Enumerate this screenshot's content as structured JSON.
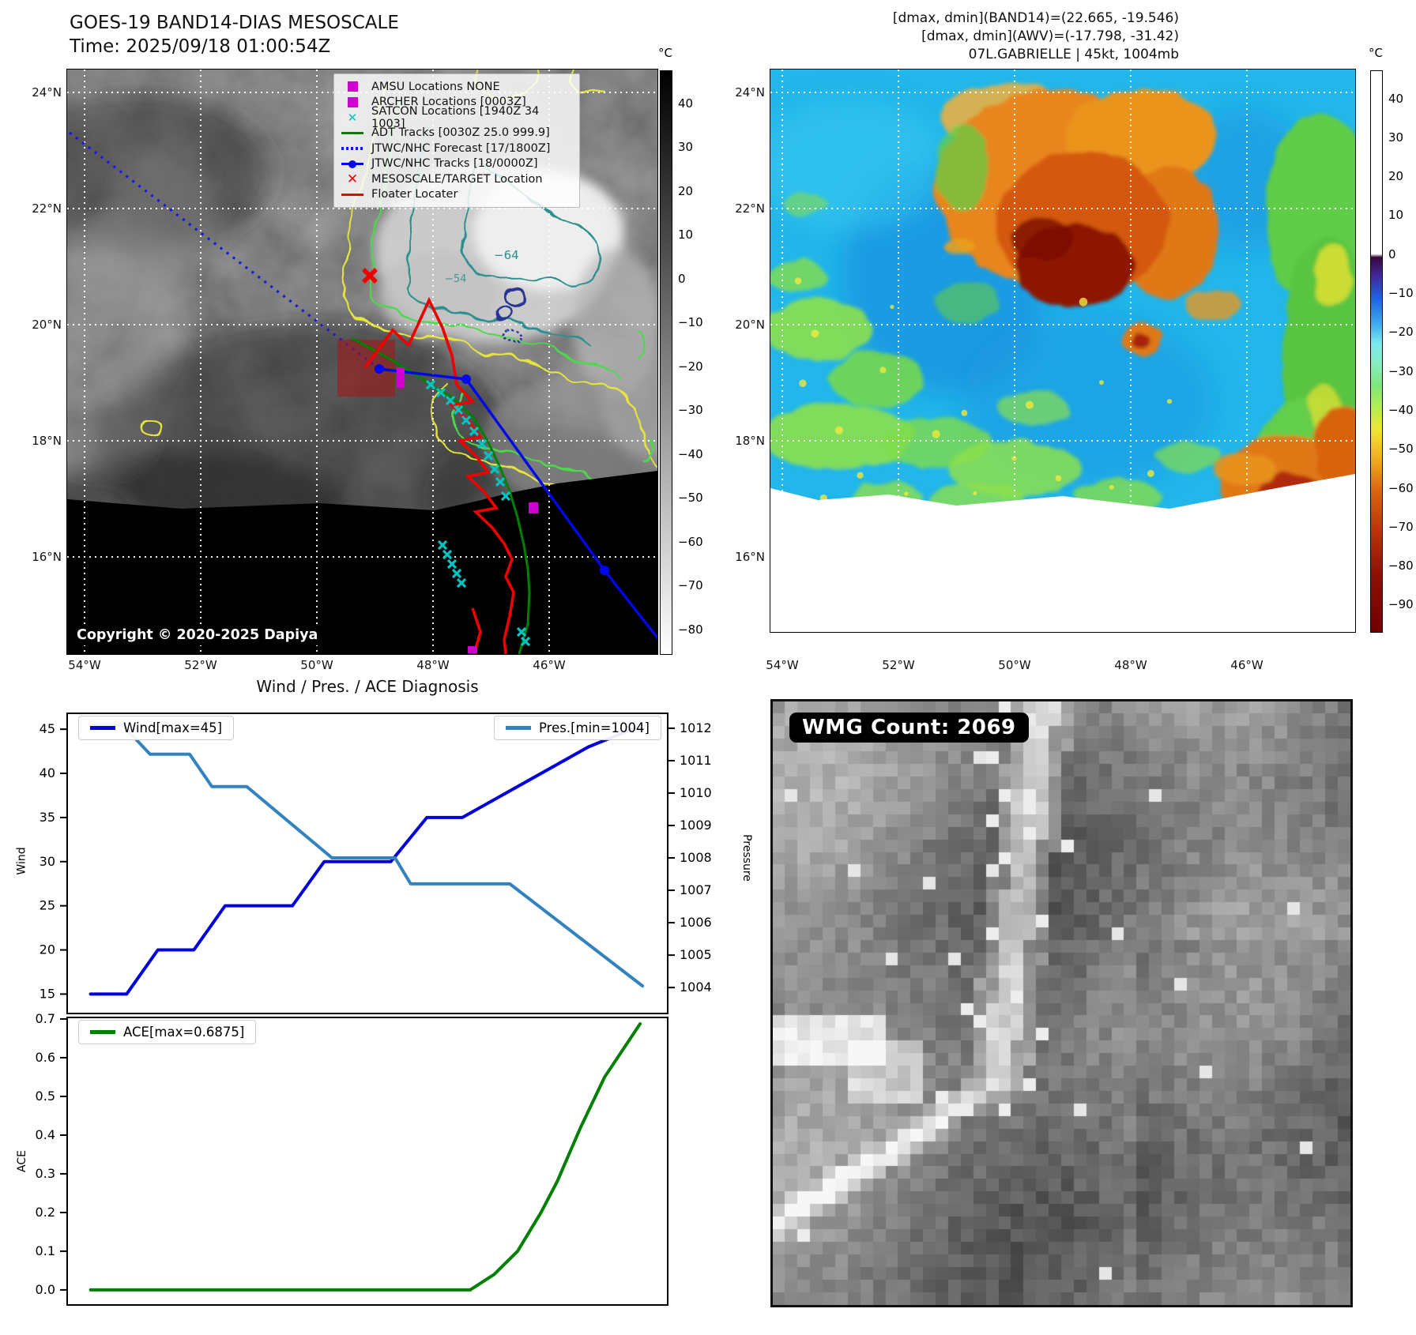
{
  "band14_panel": {
    "title": "GOES-19 BAND14-DIAS MESOSCALE",
    "time_line": "Time: 2025/09/18 01:00:54Z",
    "copyright": "Copyright © 2020-2025 Dapiya",
    "contour_label_64": "−64",
    "contour_label_54": "−54",
    "legend_items": [
      {
        "label": "AMSU Locations NONE",
        "marker": "square",
        "color": "#cf00cf"
      },
      {
        "label": "ARCHER Locations [0003Z]",
        "marker": "square",
        "color": "#cf00cf"
      },
      {
        "label": "SATCON Locations [1940Z 34 1003]",
        "marker": "x",
        "color": "#00c3c3"
      },
      {
        "label": "ADT Tracks [0030Z 25.0 999.9]",
        "marker": "line",
        "color": "#008000"
      },
      {
        "label": "JTWC/NHC Forecast [17/1800Z]",
        "marker": "dotted",
        "color": "#1515ee"
      },
      {
        "label": "JTWC/NHC Tracks [18/0000Z]",
        "marker": "linedot",
        "color": "#0008e8"
      },
      {
        "label": "MESOSCALE/TARGET Location",
        "marker": "xbold",
        "color": "#ee0000"
      },
      {
        "label": "Floater Locater",
        "marker": "line",
        "color": "#ee0000"
      }
    ],
    "lon_ticks": [
      "54°W",
      "52°W",
      "50°W",
      "48°W",
      "46°W"
    ],
    "lat_ticks": [
      "24°N",
      "22°N",
      "20°N",
      "18°N",
      "16°N"
    ],
    "colorbar": {
      "unit": "°C",
      "ticks": [
        "40",
        "30",
        "20",
        "10",
        "0",
        "−10",
        "−20",
        "−30",
        "−40",
        "−50",
        "−60",
        "−70",
        "−80"
      ]
    }
  },
  "awv_panel": {
    "info_line1": "[dmax, dmin](BAND14)=(22.665, -19.546)",
    "info_line2": "[dmax, dmin](AWV)=(-17.798, -31.42)",
    "info_line3": "07L.GABRIELLE | 45kt, 1004mb",
    "lon_ticks": [
      "54°W",
      "52°W",
      "50°W",
      "48°W",
      "46°W"
    ],
    "lat_ticks": [
      "24°N",
      "22°N",
      "20°N",
      "18°N",
      "16°N"
    ],
    "colorbar": {
      "unit": "°C",
      "ticks": [
        "40",
        "30",
        "20",
        "10",
        "0",
        "−10",
        "−20",
        "−30",
        "−40",
        "−50",
        "−60",
        "−70",
        "−80",
        "−90"
      ]
    }
  },
  "diagnosis": {
    "title": "Wind / Pres. / ACE Diagnosis",
    "wind_axis_label": "Wind",
    "pressure_axis_label": "Pressure",
    "ace_axis_label": "ACE",
    "wind_legend": "Wind[max=45]",
    "pres_legend": "Pres.[min=1004]",
    "ace_legend": "ACE[max=0.6875]"
  },
  "wmg_panel": {
    "count_label": "WMG Count: 2069"
  },
  "chart_data": [
    {
      "type": "line",
      "title": "Wind / Pres. / ACE Diagnosis",
      "xlim": [
        0,
        100
      ],
      "grid": false,
      "series": [
        {
          "name": "Wind[max=45]",
          "axis": "left",
          "color": "#0000dd",
          "x": [
            3.9,
            9.9,
            15.1,
            21.1,
            26.3,
            37.5,
            42.8,
            53.9,
            59.9,
            65.8,
            86.8,
            94.1,
            95.8
          ],
          "y": [
            15,
            15,
            20,
            20,
            25,
            25,
            30,
            30,
            35,
            35,
            43,
            45,
            45
          ]
        },
        {
          "name": "Pres.[min=1004]",
          "axis": "right",
          "color": "#3182bd",
          "x": [
            4.2,
            9.2,
            13.8,
            20.4,
            24.1,
            29.9,
            44.1,
            54.6,
            57.2,
            73.7,
            95.8
          ],
          "y": [
            1012.1,
            1012.1,
            1011.2,
            1011.2,
            1010.2,
            1010.2,
            1008.0,
            1008.0,
            1007.2,
            1007.2,
            1004.05
          ]
        }
      ],
      "left_ylabel": "Wind",
      "right_ylabel": "Pressure",
      "left_ylim": [
        12.8,
        46.8
      ],
      "right_ylim": [
        1003.2,
        1012.46
      ],
      "left_yticks": [
        15,
        20,
        25,
        30,
        35,
        40,
        45
      ],
      "left_ytick_labels": [
        "15",
        "20",
        "25",
        "30",
        "35",
        "40",
        "45"
      ],
      "right_yticks": [
        1004,
        1005,
        1006,
        1007,
        1008,
        1009,
        1010,
        1011,
        1012
      ],
      "right_ytick_labels": [
        "1004",
        "1005",
        "1006",
        "1007",
        "1008",
        "1009",
        "1010",
        "1011",
        "1012"
      ],
      "legend_position": "upper-left / upper-right"
    },
    {
      "type": "line",
      "title": "ACE",
      "xlim": [
        0,
        100
      ],
      "grid": false,
      "series": [
        {
          "name": "ACE[max=0.6875]",
          "axis": "left",
          "color": "#008000",
          "x": [
            3.9,
            67.1,
            71.1,
            75.0,
            78.9,
            81.6,
            85.5,
            89.5,
            95.4
          ],
          "y": [
            0,
            0,
            0.04,
            0.1,
            0.2,
            0.28,
            0.42,
            0.55,
            0.6875
          ]
        }
      ],
      "left_ylabel": "ACE",
      "left_ylim": [
        -0.039,
        0.704
      ],
      "left_yticks": [
        0.0,
        0.1,
        0.2,
        0.3,
        0.4,
        0.5,
        0.6,
        0.7
      ],
      "left_ytick_labels": [
        "0.0",
        "0.1",
        "0.2",
        "0.3",
        "0.4",
        "0.5",
        "0.6",
        "0.7"
      ],
      "legend_position": "upper-left"
    }
  ]
}
